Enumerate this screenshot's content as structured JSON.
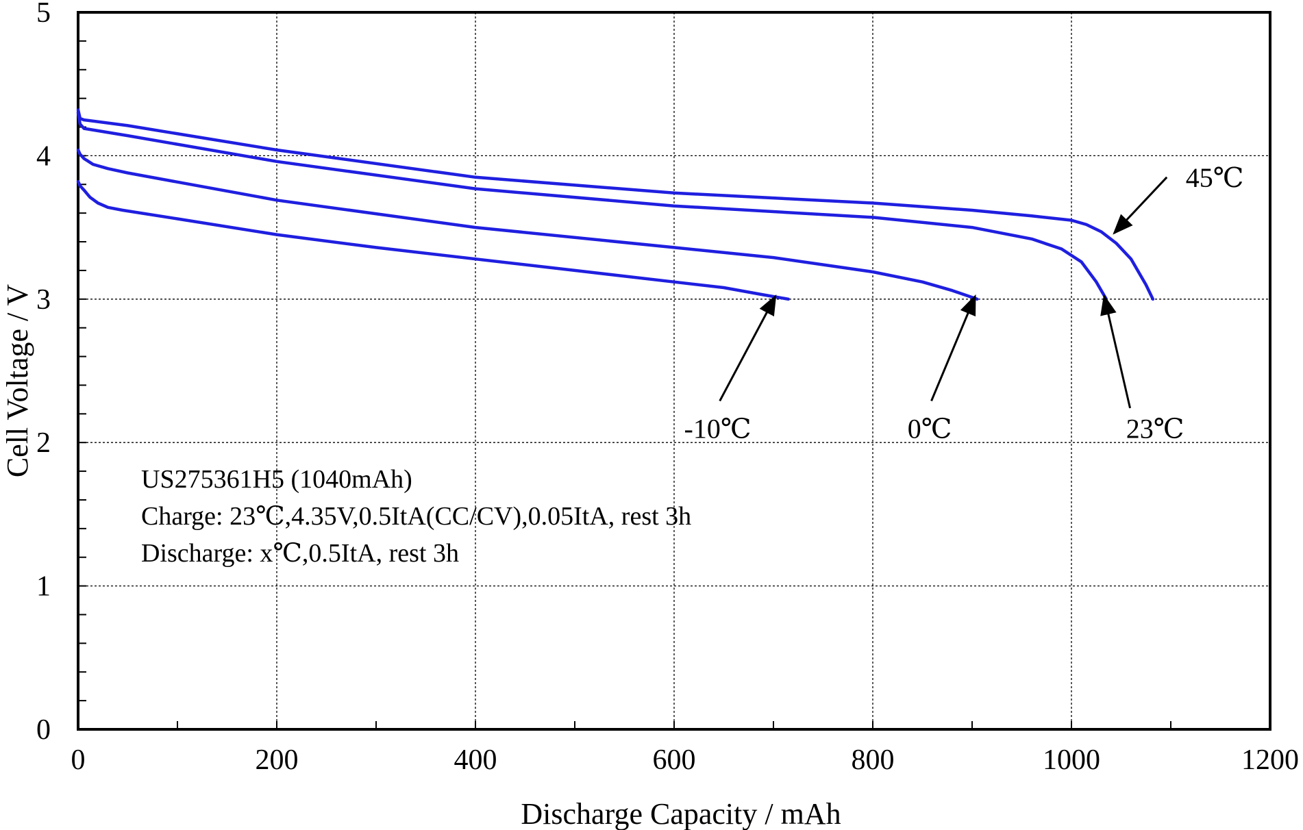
{
  "chart_data": {
    "type": "line",
    "xlabel": "Discharge Capacity / mAh",
    "ylabel": "Cell Voltage / V",
    "xlim": [
      0,
      1200
    ],
    "ylim": [
      0,
      5
    ],
    "x_ticks": [
      0,
      200,
      400,
      600,
      800,
      1000,
      1200
    ],
    "y_ticks": [
      0,
      1,
      2,
      3,
      4,
      5
    ],
    "grid": true,
    "line_color": "#1f1fe0",
    "notes": [
      "US275361H5 (1040mAh)",
      "Charge: 23℃,4.35V,0.5ItA(CC/CV),0.05ItA, rest 3h",
      "Discharge: x℃,0.5ItA, rest 3h"
    ],
    "series": [
      {
        "name": "45℃",
        "x": [
          0,
          2,
          6,
          50,
          200,
          400,
          600,
          800,
          900,
          960,
          1000,
          1015,
          1030,
          1045,
          1060,
          1075,
          1082
        ],
        "y": [
          4.32,
          4.26,
          4.25,
          4.21,
          4.04,
          3.85,
          3.74,
          3.67,
          3.62,
          3.58,
          3.55,
          3.52,
          3.47,
          3.39,
          3.28,
          3.1,
          3.0
        ]
      },
      {
        "name": "23℃",
        "x": [
          0,
          2,
          6,
          50,
          200,
          400,
          600,
          800,
          900,
          960,
          990,
          1010,
          1025,
          1035
        ],
        "y": [
          4.3,
          4.22,
          4.19,
          4.14,
          3.96,
          3.77,
          3.65,
          3.57,
          3.5,
          3.42,
          3.35,
          3.26,
          3.12,
          3.0
        ]
      },
      {
        "name": "0℃",
        "x": [
          0,
          2,
          6,
          15,
          30,
          50,
          200,
          400,
          600,
          700,
          800,
          850,
          880,
          905
        ],
        "y": [
          4.04,
          4.01,
          3.98,
          3.94,
          3.91,
          3.88,
          3.69,
          3.5,
          3.36,
          3.29,
          3.19,
          3.12,
          3.06,
          3.0
        ]
      },
      {
        "name": "-10℃",
        "x": [
          0,
          2,
          6,
          12,
          20,
          30,
          45,
          100,
          200,
          300,
          400,
          500,
          600,
          650,
          690,
          715
        ],
        "y": [
          3.82,
          3.79,
          3.76,
          3.71,
          3.67,
          3.64,
          3.62,
          3.56,
          3.45,
          3.36,
          3.28,
          3.2,
          3.12,
          3.08,
          3.03,
          3.0
        ]
      }
    ],
    "annotations": [
      {
        "text": "45℃",
        "arrow_tip": [
          1043,
          3.46
        ],
        "arrow_tail": [
          1096,
          3.85
        ],
        "label_at": [
          1115,
          3.85
        ]
      },
      {
        "text": "23℃",
        "arrow_tip": [
          1033,
          3.02
        ],
        "arrow_tail": [
          1059,
          2.24
        ],
        "label_at": [
          1055,
          2.1
        ]
      },
      {
        "text": "0℃",
        "arrow_tip": [
          903,
          3.02
        ],
        "arrow_tail": [
          859,
          2.29
        ],
        "label_at": [
          835,
          2.1
        ]
      },
      {
        "text": "-10℃",
        "arrow_tip": [
          702,
          3.02
        ],
        "arrow_tail": [
          646,
          2.29
        ],
        "label_at": [
          610,
          2.1
        ]
      }
    ]
  }
}
